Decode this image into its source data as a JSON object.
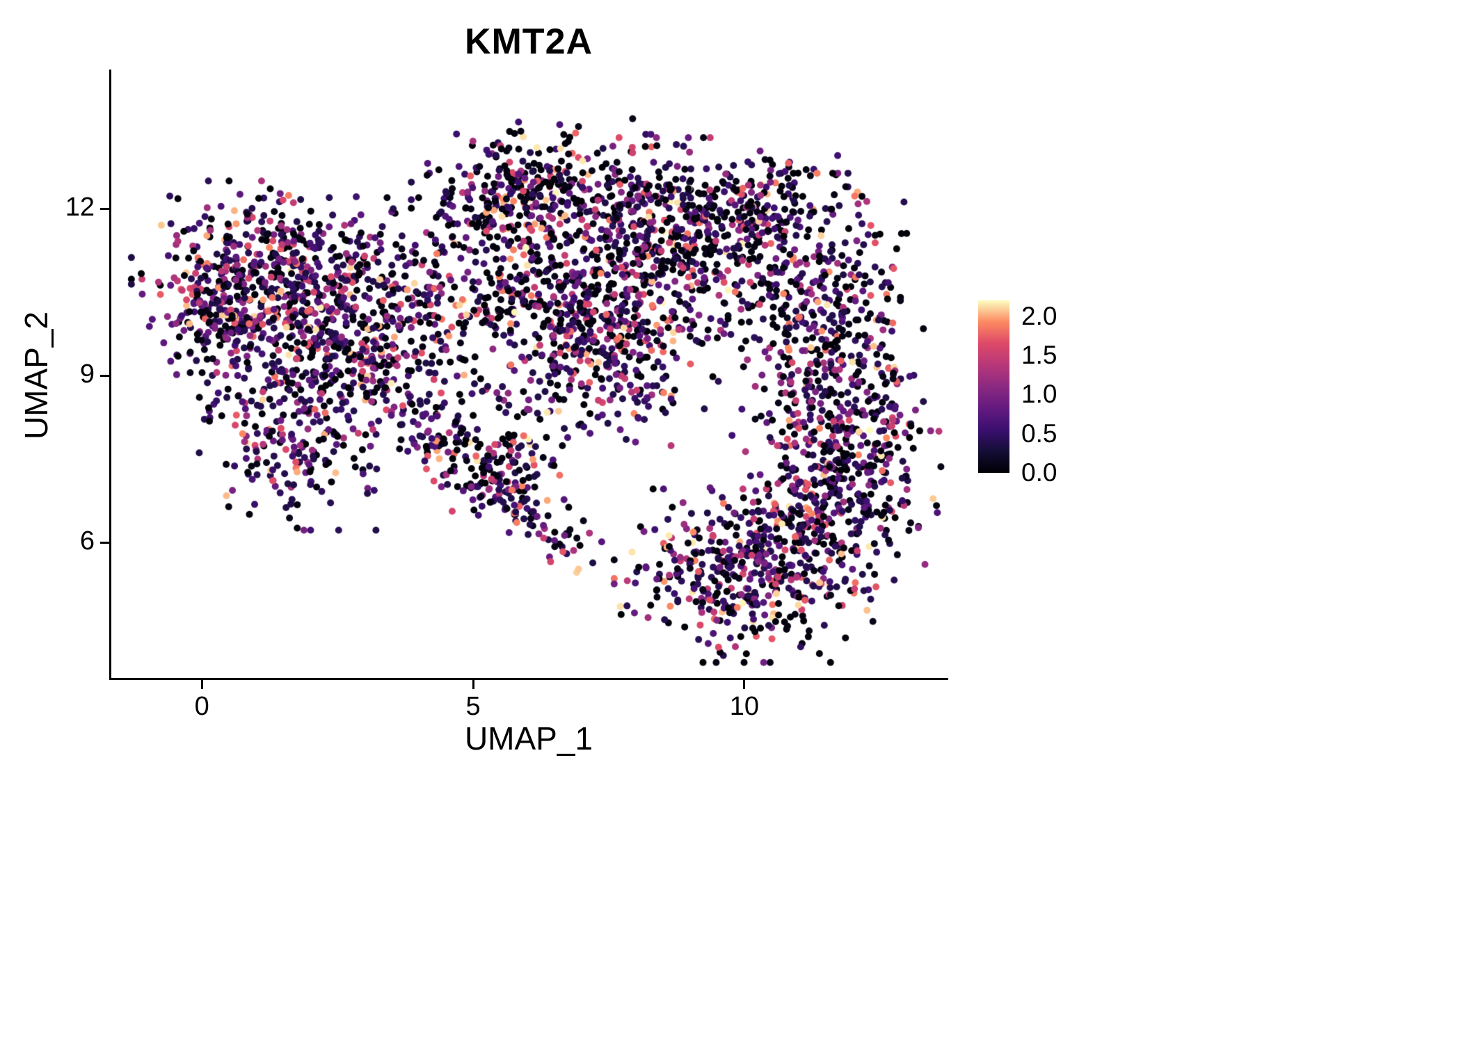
{
  "chart_data": {
    "type": "scatter",
    "title": "KMT2A",
    "xlabel": "UMAP_1",
    "ylabel": "UMAP_2",
    "x_ticks": [
      0,
      5,
      10
    ],
    "y_ticks": [
      6,
      9,
      12
    ],
    "xlim": [
      -1.67,
      13.72
    ],
    "ylim": [
      3.55,
      14.48
    ],
    "grid": false,
    "point_radius": 5,
    "seed": 42,
    "colors": {
      "background": "#ffffff",
      "axis": "#000000",
      "text": "#000000"
    },
    "legend": {
      "position": "right",
      "vmin": 0.0,
      "vmax": 2.2,
      "tick_labels": [
        "2.0",
        "1.5",
        "1.0",
        "0.5",
        "0.0"
      ],
      "tick_values": [
        2.0,
        1.5,
        1.0,
        0.5,
        0.0
      ]
    },
    "colormap": {
      "name": "magma",
      "stops": [
        {
          "t": 0.0,
          "color": "#000004"
        },
        {
          "t": 0.125,
          "color": "#140e36"
        },
        {
          "t": 0.25,
          "color": "#3b0f70"
        },
        {
          "t": 0.375,
          "color": "#641a80"
        },
        {
          "t": 0.5,
          "color": "#8c2981"
        },
        {
          "t": 0.625,
          "color": "#b73779"
        },
        {
          "t": 0.75,
          "color": "#de4968"
        },
        {
          "t": 0.875,
          "color": "#fc8961"
        },
        {
          "t": 1.0,
          "color": "#fcfdbf"
        }
      ]
    },
    "expression_distribution": {
      "zero_fraction": 0.36,
      "nonzero_min": 0.35,
      "max": 2.2,
      "skew_power": 2.2
    },
    "clusters": [
      {
        "x": 1.1,
        "y": 10.7,
        "sx": 1.0,
        "sy": 0.75,
        "n": 420,
        "zf": 0.3
      },
      {
        "x": 2.4,
        "y": 10.1,
        "sx": 0.9,
        "sy": 0.9,
        "n": 300,
        "zf": 0.32
      },
      {
        "x": 0.4,
        "y": 10.1,
        "sx": 0.5,
        "sy": 0.7,
        "n": 150,
        "zf": 0.3
      },
      {
        "x": 1.6,
        "y": 7.9,
        "sx": 0.75,
        "sy": 0.7,
        "n": 200,
        "zf": 0.33
      },
      {
        "x": 3.3,
        "y": 9.0,
        "sx": 0.7,
        "sy": 0.7,
        "n": 130,
        "zf": 0.36
      },
      {
        "x": 4.3,
        "y": 10.4,
        "sx": 0.8,
        "sy": 0.75,
        "n": 160,
        "zf": 0.38
      },
      {
        "x": 5.9,
        "y": 12.3,
        "sx": 0.85,
        "sy": 0.55,
        "n": 300,
        "zf": 0.4
      },
      {
        "x": 6.6,
        "y": 10.4,
        "sx": 1.0,
        "sy": 0.85,
        "n": 380,
        "zf": 0.4
      },
      {
        "x": 7.6,
        "y": 9.3,
        "sx": 0.8,
        "sy": 0.65,
        "n": 250,
        "zf": 0.36
      },
      {
        "x": 8.8,
        "y": 11.6,
        "sx": 0.8,
        "sy": 0.7,
        "n": 220,
        "zf": 0.42
      },
      {
        "x": 10.4,
        "y": 12.1,
        "sx": 0.55,
        "sy": 0.45,
        "n": 90,
        "zf": 0.42
      },
      {
        "x": 11.5,
        "y": 10.0,
        "sx": 0.75,
        "sy": 1.1,
        "n": 380,
        "zf": 0.4
      },
      {
        "x": 12.0,
        "y": 7.6,
        "sx": 0.75,
        "sy": 1.0,
        "n": 330,
        "zf": 0.36
      },
      {
        "x": 10.0,
        "y": 5.4,
        "sx": 1.0,
        "sy": 0.65,
        "n": 380,
        "zf": 0.34
      },
      {
        "x": 11.0,
        "y": 6.3,
        "sx": 0.7,
        "sy": 0.6,
        "n": 180,
        "zf": 0.38
      },
      {
        "line": [
          [
            4.0,
            8.2
          ],
          [
            6.9,
            5.8
          ]
        ],
        "jitter": 0.3,
        "n": 170,
        "zf": 0.33
      },
      {
        "x": 5.6,
        "y": 7.4,
        "sx": 0.45,
        "sy": 0.5,
        "n": 90,
        "zf": 0.32
      },
      {
        "x": 9.4,
        "y": 10.9,
        "sx": 1.0,
        "sy": 0.8,
        "n": 140,
        "zf": 0.45
      },
      {
        "x": 7.9,
        "y": 11.9,
        "sx": 0.6,
        "sy": 0.6,
        "n": 130,
        "zf": 0.4
      },
      {
        "x": 9.9,
        "y": 11.9,
        "sx": 0.5,
        "sy": 0.5,
        "n": 70,
        "zf": 0.42
      }
    ]
  }
}
